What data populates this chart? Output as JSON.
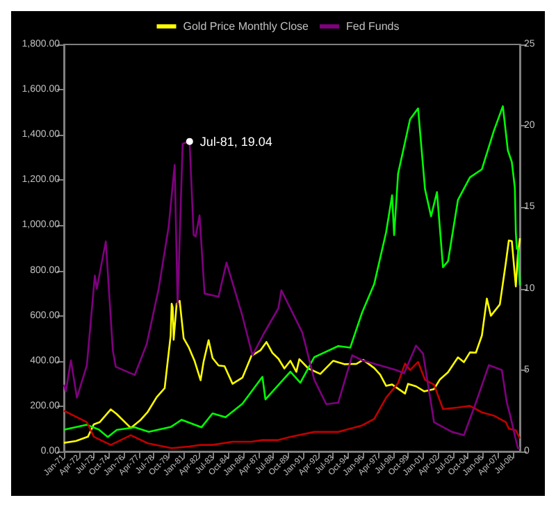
{
  "chart_data": {
    "type": "line",
    "xlim": [
      "1971-01",
      "2009-02"
    ],
    "xticks": [
      {
        "value": "1971-01",
        "label": "Jan-71"
      },
      {
        "value": "1972-04",
        "label": "Apr-72"
      },
      {
        "value": "1973-07",
        "label": "Jul-73"
      },
      {
        "value": "1974-10",
        "label": "Oct-74"
      },
      {
        "value": "1976-01",
        "label": "Jan-76"
      },
      {
        "value": "1977-04",
        "label": "Apr-77"
      },
      {
        "value": "1978-07",
        "label": "Jul-78"
      },
      {
        "value": "1979-10",
        "label": "Oct-79"
      },
      {
        "value": "1981-01",
        "label": "Jan-81"
      },
      {
        "value": "1982-04",
        "label": "Apr-82"
      },
      {
        "value": "1983-07",
        "label": "Jul-83"
      },
      {
        "value": "1984-10",
        "label": "Oct-84"
      },
      {
        "value": "1986-01",
        "label": "Jan-86"
      },
      {
        "value": "1987-04",
        "label": "Apr-87"
      },
      {
        "value": "1988-07",
        "label": "Jul-88"
      },
      {
        "value": "1989-10",
        "label": "Oct-89"
      },
      {
        "value": "1991-01",
        "label": "Jan-91"
      },
      {
        "value": "1992-04",
        "label": "Apr-92"
      },
      {
        "value": "1993-07",
        "label": "Jul-93"
      },
      {
        "value": "1994-10",
        "label": "Oct-94"
      },
      {
        "value": "1996-01",
        "label": "Jan-96"
      },
      {
        "value": "1997-04",
        "label": "Apr-97"
      },
      {
        "value": "1998-07",
        "label": "Jul-98"
      },
      {
        "value": "1999-10",
        "label": "Oct-99"
      },
      {
        "value": "2001-01",
        "label": "Jan-01"
      },
      {
        "value": "2002-04",
        "label": "Apr-02"
      },
      {
        "value": "2003-07",
        "label": "Jul-03"
      },
      {
        "value": "2004-10",
        "label": "Oct-04"
      },
      {
        "value": "2006-01",
        "label": "Jan-06"
      },
      {
        "value": "2007-04",
        "label": "Apr-07"
      },
      {
        "value": "2008-07",
        "label": "Jul-08"
      }
    ],
    "ylim": [
      0,
      1800
    ],
    "yticks": [
      {
        "value": 0,
        "label": "0.00"
      },
      {
        "value": 200,
        "label": "200.00"
      },
      {
        "value": 400,
        "label": "400.00"
      },
      {
        "value": 600,
        "label": "600.00"
      },
      {
        "value": 800,
        "label": "800.00"
      },
      {
        "value": 1000,
        "label": "1,000.00"
      },
      {
        "value": 1200,
        "label": "1,200.00"
      },
      {
        "value": 1400,
        "label": "1,400.00"
      },
      {
        "value": 1600,
        "label": "1,600.00"
      },
      {
        "value": 1800,
        "label": "1,800.00"
      }
    ],
    "y2lim": [
      0,
      25
    ],
    "y2ticks": [
      0,
      5,
      10,
      15,
      20,
      25
    ],
    "grid": false,
    "legend": "top",
    "marker": "none",
    "line_style": "solid",
    "annotations": [
      "Jul-81, 19.04"
    ],
    "series": [
      {
        "name": "Gold Price Monthly Close",
        "color": "#ffff00",
        "x": [
          "1971-01",
          "1972-01",
          "1973-01",
          "1973-07",
          "1974-01",
          "1974-12",
          "1975-06",
          "1976-08",
          "1977-06",
          "1978-01",
          "1978-10",
          "1979-06",
          "1979-09",
          "1979-12",
          "1980-01",
          "1980-02",
          "1980-03",
          "1980-06",
          "1980-09",
          "1981-01",
          "1981-06",
          "1981-12",
          "1982-06",
          "1982-09",
          "1983-02",
          "1983-06",
          "1983-12",
          "1984-06",
          "1985-02",
          "1985-12",
          "1986-09",
          "1987-06",
          "1987-12",
          "1988-06",
          "1988-12",
          "1989-06",
          "1989-12",
          "1990-06",
          "1990-09",
          "1991-06",
          "1992-06",
          "1993-07",
          "1994-06",
          "1995-06",
          "1996-01",
          "1996-12",
          "1997-06",
          "1997-12",
          "1998-06",
          "1999-07",
          "1999-10",
          "2000-06",
          "2001-02",
          "2001-12",
          "2002-06",
          "2003-02",
          "2003-12",
          "2004-06",
          "2004-12",
          "2005-06",
          "2005-12",
          "2006-05",
          "2006-09",
          "2007-06",
          "2007-12",
          "2008-03",
          "2008-06",
          "2008-10",
          "2008-12",
          "2009-02"
        ],
        "values": [
          38,
          46,
          65,
          120,
          130,
          186,
          165,
          104,
          140,
          175,
          240,
          280,
          397,
          512,
          653,
          637,
          494,
          653,
          666,
          500,
          462,
          400,
          315,
          397,
          492,
          413,
          380,
          377,
          299,
          327,
          423,
          447,
          484,
          436,
          410,
          367,
          401,
          352,
          408,
          367,
          343,
          401,
          386,
          387,
          405,
          369,
          340,
          290,
          296,
          256,
          299,
          288,
          266,
          276,
          319,
          350,
          416,
          395,
          438,
          437,
          513,
          676,
          600,
          650,
          834,
          933,
          930,
          730,
          869,
          943
        ]
      },
      {
        "color": "#00ff00",
        "x": [
          "1971-01",
          "1972-12",
          "1973-12",
          "1974-09",
          "1975-06",
          "1976-12",
          "1978-02",
          "1979-12",
          "1980-11",
          "1982-07",
          "1983-06",
          "1984-07",
          "1985-12",
          "1987-08",
          "1987-11",
          "1989-12",
          "1990-10",
          "1991-12",
          "1993-12",
          "1994-12",
          "1995-12",
          "1996-12",
          "1997-12",
          "1998-06",
          "1998-08",
          "1998-12",
          "1999-12",
          "2000-08",
          "2001-03",
          "2001-09",
          "2002-03",
          "2002-09",
          "2003-02",
          "2003-12",
          "2004-12",
          "2005-12",
          "2006-12",
          "2007-09",
          "2008-02",
          "2008-06",
          "2008-09",
          "2008-10",
          "2008-11",
          "2008-12",
          "2009-02"
        ],
        "values": [
          96,
          118,
          97,
          64,
          95,
          107,
          87,
          108,
          140,
          107,
          168,
          151,
          211,
          330,
          230,
          353,
          304,
          417,
          466,
          459,
          615,
          740,
          970,
          1133,
          957,
          1229,
          1469,
          1517,
          1160,
          1040,
          1147,
          815,
          841,
          1112,
          1212,
          1248,
          1418,
          1527,
          1331,
          1280,
          1166,
          968,
          896,
          903,
          735
        ]
      },
      {
        "color": "#c00000",
        "axis": "y2",
        "x": [
          "1971-01",
          "1972-12",
          "1973-07",
          "1974-12",
          "1976-08",
          "1978-01",
          "1980-01",
          "1981-06",
          "1982-06",
          "1983-06",
          "1985-02",
          "1986-09",
          "1987-08",
          "1988-12",
          "1989-12",
          "1991-12",
          "1993-12",
          "1995-12",
          "1996-12",
          "1997-12",
          "1998-12",
          "1999-07",
          "1999-12",
          "2000-08",
          "2001-03",
          "2001-12",
          "2002-09",
          "2003-12",
          "2004-12",
          "2005-12",
          "2006-12",
          "2007-12",
          "2008-03",
          "2008-10",
          "2009-02"
        ],
        "values": [
          2.5,
          1.8,
          0.9,
          0.4,
          1.0,
          0.5,
          0.2,
          0.3,
          0.4,
          0.4,
          0.6,
          0.6,
          0.7,
          0.7,
          0.9,
          1.2,
          1.2,
          1.6,
          2.0,
          3.3,
          4.2,
          5.4,
          5.0,
          5.5,
          4.4,
          4.1,
          2.6,
          2.7,
          2.8,
          2.4,
          2.2,
          1.8,
          1.4,
          1.3,
          0.8
        ]
      },
      {
        "name": "Fed Funds",
        "color": "#800080",
        "axis": "y2",
        "x": [
          "1971-01",
          "1971-03",
          "1971-08",
          "1972-02",
          "1972-12",
          "1973-08",
          "1973-10",
          "1974-07",
          "1975-02",
          "1975-05",
          "1976-12",
          "1977-12",
          "1978-12",
          "1979-10",
          "1980-04",
          "1980-07",
          "1980-12",
          "1981-07",
          "1981-11",
          "1982-01",
          "1982-05",
          "1982-10",
          "1983-12",
          "1984-08",
          "1985-12",
          "1986-10",
          "1987-09",
          "1988-12",
          "1989-03",
          "1990-12",
          "1991-12",
          "1992-12",
          "1993-12",
          "1995-02",
          "1995-12",
          "1998-10",
          "1999-06",
          "2000-06",
          "2001-01",
          "2001-12",
          "2003-06",
          "2004-06",
          "2005-06",
          "2006-07",
          "2007-08",
          "2008-01",
          "2008-04",
          "2008-12",
          "2009-02"
        ],
        "values": [
          4.1,
          3.7,
          5.6,
          3.3,
          5.3,
          10.8,
          10.0,
          12.9,
          6.2,
          5.2,
          4.7,
          6.6,
          10.0,
          13.8,
          17.6,
          9.0,
          18.9,
          19.04,
          13.3,
          13.2,
          14.5,
          9.7,
          9.5,
          11.6,
          8.3,
          5.9,
          7.2,
          8.8,
          9.9,
          7.3,
          4.4,
          2.9,
          3.0,
          5.9,
          5.6,
          5.0,
          4.8,
          6.5,
          6.0,
          1.8,
          1.2,
          1.0,
          3.0,
          5.3,
          5.0,
          3.0,
          2.3,
          0.2,
          0.2
        ]
      }
    ]
  }
}
